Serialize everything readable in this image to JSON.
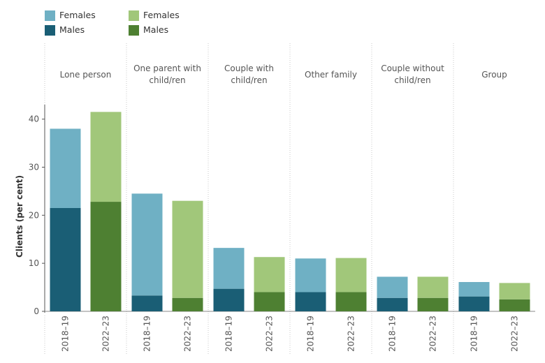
{
  "legend": {
    "columns": [
      {
        "items": [
          {
            "label": "Females",
            "color": "#6fb0c4"
          },
          {
            "label": "Males",
            "color": "#1a5e75"
          }
        ]
      },
      {
        "items": [
          {
            "label": "Females",
            "color": "#a1c77a"
          },
          {
            "label": "Males",
            "color": "#4e8032"
          }
        ]
      }
    ]
  },
  "chart_data": {
    "type": "bar",
    "stacked": true,
    "ylabel": "Clients (per cent)",
    "ylim": [
      0,
      43
    ],
    "yticks": [
      0,
      10,
      20,
      30,
      40
    ],
    "grid": false,
    "legend_position": "top-left",
    "groups": [
      {
        "label": "Lone person",
        "bars": [
          {
            "period": "2018–19",
            "males": 21.5,
            "females": 16.5,
            "palette": "blue"
          },
          {
            "period": "2022–23",
            "males": 22.8,
            "females": 18.7,
            "palette": "green"
          }
        ]
      },
      {
        "label": "One parent with child/ren",
        "bars": [
          {
            "period": "2018–19",
            "males": 3.3,
            "females": 21.2,
            "palette": "blue"
          },
          {
            "period": "2022–23",
            "males": 2.8,
            "females": 20.2,
            "palette": "green"
          }
        ]
      },
      {
        "label": "Couple with child/ren",
        "bars": [
          {
            "period": "2018–19",
            "males": 4.7,
            "females": 8.5,
            "palette": "blue"
          },
          {
            "period": "2022–23",
            "males": 4.0,
            "females": 7.3,
            "palette": "green"
          }
        ]
      },
      {
        "label": "Other family",
        "bars": [
          {
            "period": "2018–19",
            "males": 4.0,
            "females": 7.0,
            "palette": "blue"
          },
          {
            "period": "2022–23",
            "males": 4.0,
            "females": 7.1,
            "palette": "green"
          }
        ]
      },
      {
        "label": "Couple without child/ren",
        "bars": [
          {
            "period": "2018–19",
            "males": 2.8,
            "females": 4.4,
            "palette": "blue"
          },
          {
            "period": "2022–23",
            "males": 2.8,
            "females": 4.4,
            "palette": "green"
          }
        ]
      },
      {
        "label": "Group",
        "bars": [
          {
            "period": "2018–19",
            "males": 3.1,
            "females": 3.0,
            "palette": "blue"
          },
          {
            "period": "2022–23",
            "males": 2.5,
            "females": 3.4,
            "palette": "green"
          }
        ]
      }
    ],
    "palettes": {
      "blue": {
        "females": "#6fb0c4",
        "males": "#1a5e75"
      },
      "green": {
        "females": "#a1c77a",
        "males": "#4e8032"
      }
    },
    "axis_color": "#555555",
    "divider_color": "#c8c8c8",
    "label_color": "#555555"
  }
}
